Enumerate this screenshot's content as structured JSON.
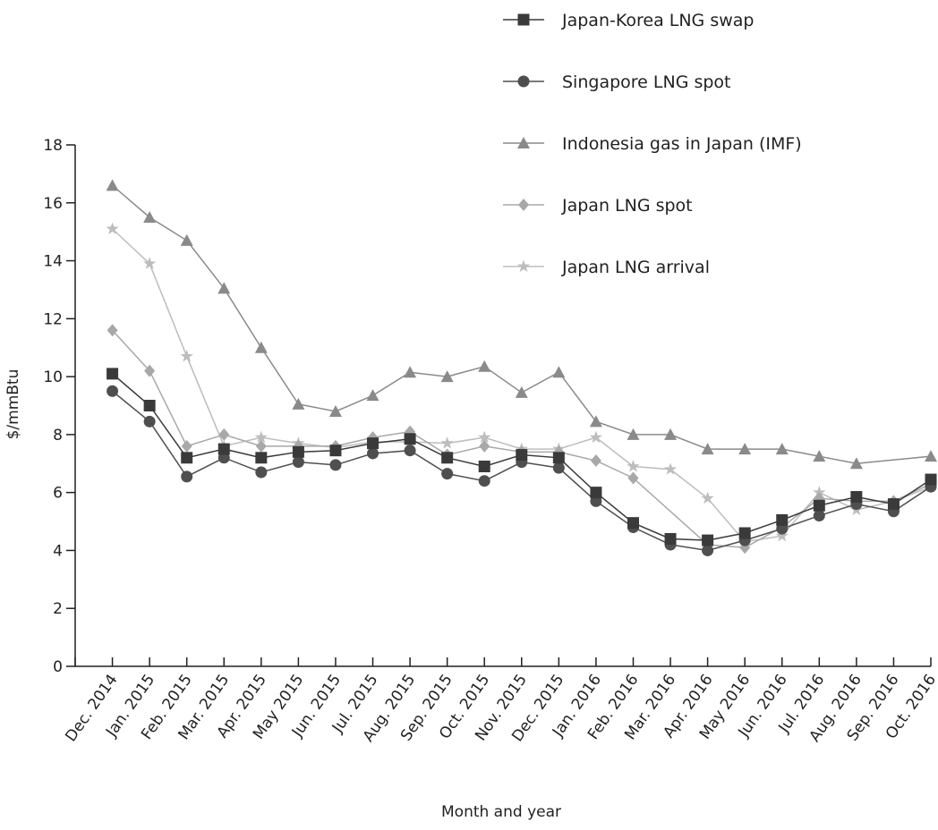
{
  "chart_data": {
    "type": "line",
    "title": "",
    "xlabel": "Month and year",
    "ylabel": "$/mmBtu",
    "ylim": [
      0,
      18
    ],
    "yticks": [
      0,
      2,
      4,
      6,
      8,
      10,
      12,
      14,
      16,
      18
    ],
    "grid": false,
    "legend_placement": "top-right",
    "categories": [
      "Dec. 2014",
      "Jan. 2015",
      "Feb. 2015",
      "Mar. 2015",
      "Apr. 2015",
      "May 2015",
      "Jun. 2015",
      "Jul. 2015",
      "Aug. 2015",
      "Sep. 2015",
      "Oct. 2015",
      "Nov. 2015",
      "Dec. 2015",
      "Jan. 2016",
      "Feb. 2016",
      "Mar. 2016",
      "Apr. 2016",
      "May 2016",
      "Jun. 2016",
      "Jul. 2016",
      "Aug. 2016",
      "Sep. 2016",
      "Oct. 2016"
    ],
    "series": [
      {
        "name": "Japan-Korea LNG swap",
        "marker": "square",
        "color": "#3a3a3a",
        "values": [
          10.1,
          9.0,
          7.2,
          7.5,
          7.2,
          7.4,
          7.45,
          7.7,
          7.85,
          7.2,
          6.9,
          7.3,
          7.2,
          6.0,
          4.95,
          4.4,
          4.35,
          4.6,
          5.05,
          5.55,
          5.85,
          5.6,
          6.45
        ]
      },
      {
        "name": "Singapore LNG spot",
        "marker": "circle",
        "color": "#4f4f4f",
        "values": [
          9.5,
          8.45,
          6.55,
          7.2,
          6.7,
          7.05,
          6.95,
          7.35,
          7.45,
          6.65,
          6.4,
          7.05,
          6.85,
          5.7,
          4.8,
          4.2,
          4.0,
          4.35,
          4.75,
          5.2,
          5.6,
          5.35,
          6.2
        ]
      },
      {
        "name": "Indonesia gas in Japan (IMF)",
        "marker": "triangle",
        "color": "#8a8a8a",
        "values": [
          16.6,
          15.5,
          14.7,
          13.05,
          11.0,
          9.05,
          8.8,
          9.35,
          10.15,
          10.0,
          10.35,
          9.45,
          10.15,
          8.45,
          8.0,
          8.0,
          7.5,
          7.5,
          7.5,
          7.25,
          7.0,
          null,
          7.25
        ]
      },
      {
        "name": "Japan LNG spot",
        "marker": "diamond",
        "color": "#a8a8a8",
        "values": [
          11.6,
          10.2,
          7.6,
          8.0,
          7.6,
          7.6,
          7.6,
          7.9,
          8.1,
          7.3,
          7.6,
          7.4,
          7.4,
          7.1,
          6.5,
          null,
          4.2,
          4.1,
          4.8,
          5.8,
          5.7,
          5.7,
          6.3
        ]
      },
      {
        "name": "Japan LNG arrival",
        "marker": "star",
        "color": "#bdbdbd",
        "values": [
          15.1,
          13.9,
          10.7,
          7.6,
          7.9,
          7.7,
          7.55,
          7.75,
          7.75,
          7.7,
          7.9,
          7.5,
          7.5,
          7.9,
          6.9,
          6.8,
          5.8,
          4.3,
          4.5,
          6.0,
          5.4,
          5.7,
          6.2
        ]
      }
    ]
  }
}
